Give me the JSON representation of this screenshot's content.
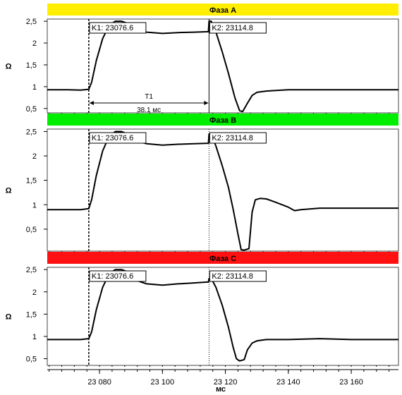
{
  "chart_data": {
    "type": "line",
    "xlabel": "мс",
    "xlim": [
      23063.4,
      23175.0
    ],
    "x_ticks": [
      {
        "value": 23080,
        "label": "23 080"
      },
      {
        "value": 23100,
        "label": "23 100"
      },
      {
        "value": 23120,
        "label": "23 120"
      },
      {
        "value": 23140,
        "label": "23 140"
      },
      {
        "value": 23160,
        "label": "23 160"
      }
    ],
    "y_ticks": [
      {
        "value": 0.5,
        "label": "0,5"
      },
      {
        "value": 1,
        "label": "1"
      },
      {
        "value": 1.5,
        "label": "1,5"
      },
      {
        "value": 2,
        "label": "2"
      },
      {
        "value": 2.5,
        "label": "2,5"
      }
    ],
    "cursors": [
      {
        "x": 23076.6,
        "label": "K1: 23076.6"
      },
      {
        "x": 23114.8,
        "label": "K2: 23114.8"
      }
    ],
    "measurement": {
      "name": "T1",
      "value": "38.1 мс"
    },
    "panels": [
      {
        "title": "Фаза A",
        "color": "#ffee00",
        "ylabel": "Ω",
        "ylim": [
          0.4,
          2.55
        ],
        "series": [
          {
            "points": [
              [
                23063.4,
                0.93
              ],
              [
                23070,
                0.93
              ],
              [
                23074,
                0.92
              ],
              [
                23076.6,
                0.94
              ],
              [
                23077.5,
                1.1
              ],
              [
                23079,
                1.6
              ],
              [
                23081,
                2.1
              ],
              [
                23083,
                2.4
              ],
              [
                23085,
                2.5
              ],
              [
                23087,
                2.5
              ],
              [
                23089,
                2.45
              ],
              [
                23092,
                2.3
              ],
              [
                23095,
                2.25
              ],
              [
                23100,
                2.22
              ],
              [
                23105,
                2.24
              ],
              [
                23110,
                2.25
              ],
              [
                23114.6,
                2.26
              ],
              [
                23114.8,
                2.5
              ],
              [
                23115.5,
                2.5
              ],
              [
                23117,
                2.25
              ],
              [
                23119,
                1.8
              ],
              [
                23121,
                1.3
              ],
              [
                23123,
                0.75
              ],
              [
                23124.5,
                0.45
              ],
              [
                23125.5,
                0.43
              ],
              [
                23127,
                0.62
              ],
              [
                23128.5,
                0.8
              ],
              [
                23130,
                0.87
              ],
              [
                23133,
                0.9
              ],
              [
                23140,
                0.93
              ],
              [
                23150,
                0.93
              ],
              [
                23160,
                0.93
              ],
              [
                23175,
                0.93
              ]
            ]
          }
        ]
      },
      {
        "title": "Фаза B",
        "color": "#00ee00",
        "ylabel": "Ω",
        "ylim": [
          0.05,
          2.55
        ],
        "series": [
          {
            "points": [
              [
                23063.4,
                0.9
              ],
              [
                23070,
                0.9
              ],
              [
                23074,
                0.9
              ],
              [
                23076.6,
                0.92
              ],
              [
                23077.5,
                1.1
              ],
              [
                23079,
                1.6
              ],
              [
                23081,
                2.1
              ],
              [
                23083,
                2.4
              ],
              [
                23085,
                2.5
              ],
              [
                23087,
                2.5
              ],
              [
                23089,
                2.45
              ],
              [
                23092,
                2.3
              ],
              [
                23095,
                2.25
              ],
              [
                23100,
                2.22
              ],
              [
                23105,
                2.24
              ],
              [
                23110,
                2.25
              ],
              [
                23114.6,
                2.26
              ],
              [
                23114.8,
                2.45
              ],
              [
                23115.5,
                2.45
              ],
              [
                23117,
                2.2
              ],
              [
                23119,
                1.8
              ],
              [
                23121,
                1.35
              ],
              [
                23122.5,
                0.9
              ],
              [
                23124,
                0.4
              ],
              [
                23125,
                0.08
              ],
              [
                23126,
                0.07
              ],
              [
                23127.5,
                0.1
              ],
              [
                23128.5,
                0.85
              ],
              [
                23129.5,
                1.1
              ],
              [
                23131,
                1.13
              ],
              [
                23133,
                1.12
              ],
              [
                23136,
                1.05
              ],
              [
                23140,
                0.95
              ],
              [
                23142,
                0.88
              ],
              [
                23144,
                0.9
              ],
              [
                23150,
                0.93
              ],
              [
                23160,
                0.93
              ],
              [
                23175,
                0.93
              ]
            ]
          }
        ]
      },
      {
        "title": "Фаза C",
        "color": "#ff1111",
        "ylabel": "Ω",
        "ylim": [
          0.35,
          2.55
        ],
        "series": [
          {
            "points": [
              [
                23063.4,
                0.93
              ],
              [
                23070,
                0.93
              ],
              [
                23074,
                0.93
              ],
              [
                23076.6,
                0.95
              ],
              [
                23077.5,
                1.1
              ],
              [
                23079,
                1.6
              ],
              [
                23081,
                2.1
              ],
              [
                23083,
                2.4
              ],
              [
                23085,
                2.5
              ],
              [
                23087,
                2.5
              ],
              [
                23089,
                2.45
              ],
              [
                23092,
                2.25
              ],
              [
                23095,
                2.18
              ],
              [
                23100,
                2.15
              ],
              [
                23105,
                2.18
              ],
              [
                23110,
                2.2
              ],
              [
                23114.6,
                2.22
              ],
              [
                23114.8,
                2.3
              ],
              [
                23115.5,
                2.3
              ],
              [
                23117,
                2.1
              ],
              [
                23119,
                1.7
              ],
              [
                23121,
                1.2
              ],
              [
                23122.5,
                0.75
              ],
              [
                23123.5,
                0.5
              ],
              [
                23124.5,
                0.45
              ],
              [
                23126,
                0.48
              ],
              [
                23127,
                0.7
              ],
              [
                23128.5,
                0.85
              ],
              [
                23130,
                0.9
              ],
              [
                23133,
                0.93
              ],
              [
                23140,
                0.93
              ],
              [
                23150,
                0.95
              ],
              [
                23160,
                0.93
              ],
              [
                23175,
                0.93
              ]
            ]
          }
        ]
      }
    ]
  }
}
